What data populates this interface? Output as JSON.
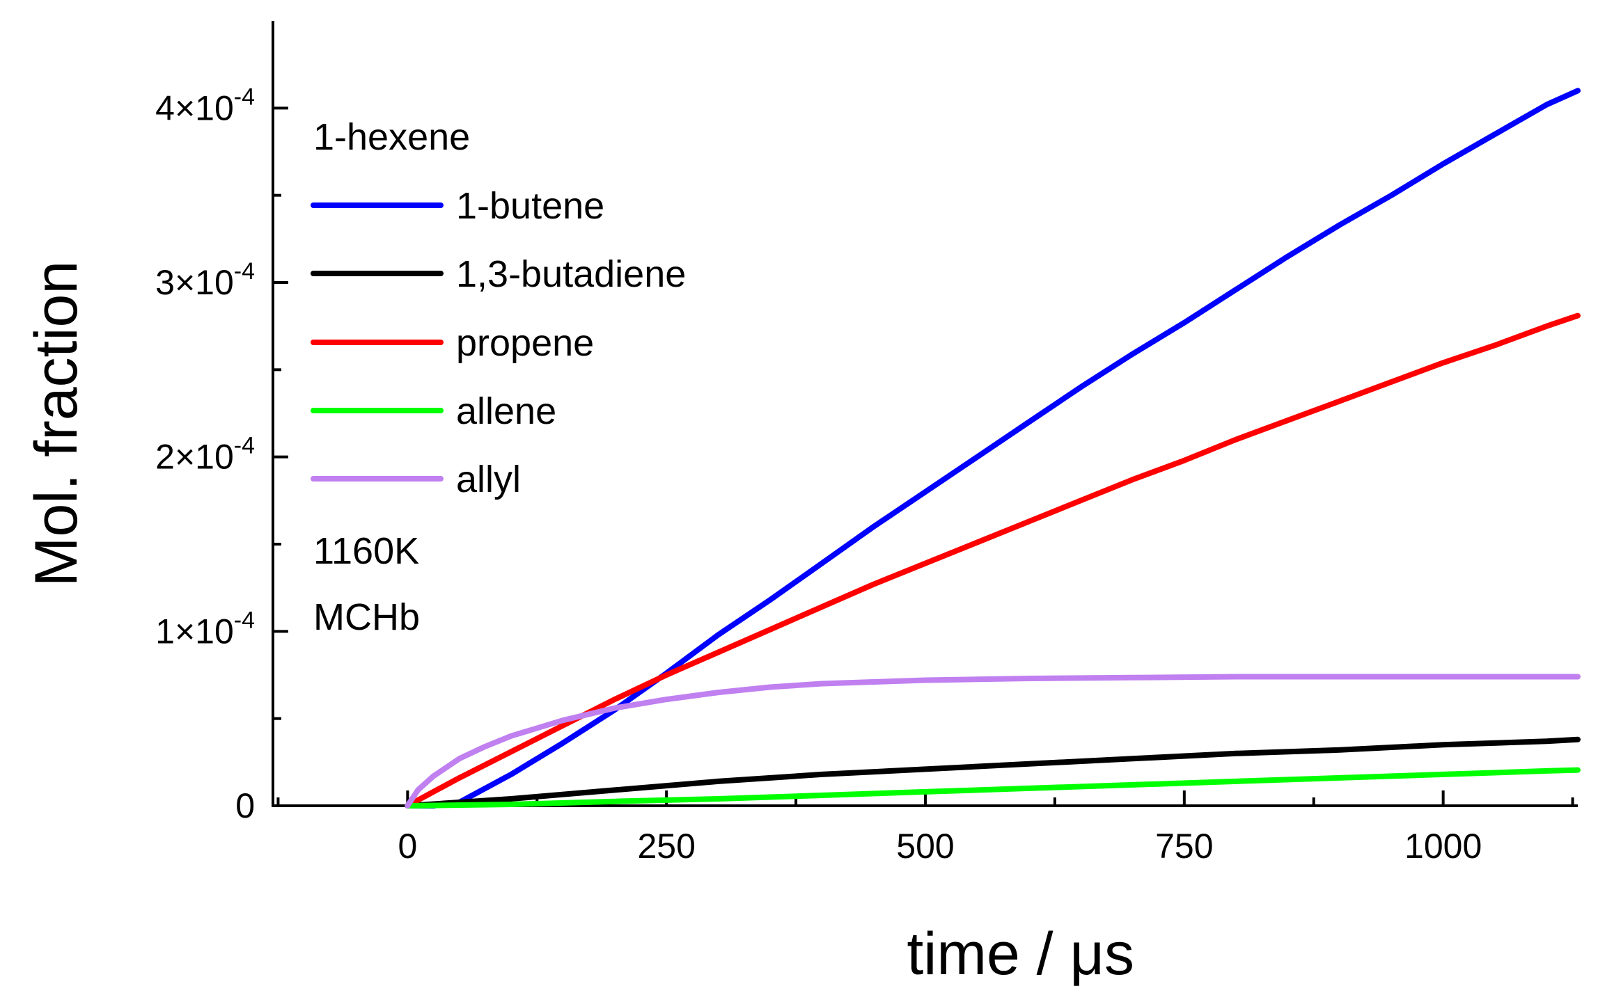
{
  "chart_data": {
    "type": "line",
    "title": "",
    "xlabel": "time / μs",
    "ylabel": "Mol. fraction",
    "xlim": [
      -130,
      1130
    ],
    "ylim": [
      0,
      0.00045
    ],
    "x_ticks": [
      0,
      250,
      500,
      750,
      1000
    ],
    "x_tick_labels": [
      "0",
      "250",
      "500",
      "750",
      "1000"
    ],
    "y_ticks": [
      0,
      0.0001,
      0.0002,
      0.0003,
      0.0004
    ],
    "y_tick_labels": [
      {
        "base": "0",
        "exp": ""
      },
      {
        "base": "1×10",
        "exp": "-4"
      },
      {
        "base": "2×10",
        "exp": "-4"
      },
      {
        "base": "3×10",
        "exp": "-4"
      },
      {
        "base": "4×10",
        "exp": "-4"
      }
    ],
    "grid": false,
    "legend_position": "top-left",
    "legend_header": "1-hexene",
    "annotations": [
      "1160K",
      "MCHb"
    ],
    "series": [
      {
        "name": "1-butene",
        "color": "#0000ff",
        "x": [
          0,
          25,
          50,
          100,
          150,
          200,
          250,
          300,
          350,
          400,
          450,
          500,
          550,
          600,
          650,
          700,
          750,
          800,
          850,
          900,
          950,
          1000,
          1050,
          1100,
          1130
        ],
        "y": [
          0,
          0,
          2e-06,
          1.8e-05,
          3.6e-05,
          5.5e-05,
          7.6e-05,
          9.8e-05,
          0.000118,
          0.000139,
          0.00016,
          0.00018,
          0.0002,
          0.00022,
          0.00024,
          0.000259,
          0.000277,
          0.000296,
          0.000315,
          0.000333,
          0.00035,
          0.000368,
          0.000385,
          0.000402,
          0.00041
        ]
      },
      {
        "name": "1,3-butadiene",
        "color": "#000000",
        "x": [
          0,
          50,
          100,
          200,
          300,
          400,
          500,
          600,
          700,
          800,
          900,
          1000,
          1100,
          1130
        ],
        "y": [
          0,
          2e-06,
          4e-06,
          9e-06,
          1.4e-05,
          1.8e-05,
          2.1e-05,
          2.4e-05,
          2.7e-05,
          3e-05,
          3.2e-05,
          3.5e-05,
          3.7e-05,
          3.8e-05
        ]
      },
      {
        "name": "propene",
        "color": "#ff0000",
        "x": [
          0,
          25,
          50,
          100,
          150,
          200,
          250,
          300,
          350,
          400,
          450,
          500,
          550,
          600,
          650,
          700,
          750,
          800,
          850,
          900,
          950,
          1000,
          1050,
          1100,
          1130
        ],
        "y": [
          0,
          8e-06,
          1.6e-05,
          3.1e-05,
          4.6e-05,
          6.1e-05,
          7.5e-05,
          8.8e-05,
          0.000101,
          0.000114,
          0.000127,
          0.000139,
          0.000151,
          0.000163,
          0.000175,
          0.000187,
          0.000198,
          0.00021,
          0.000221,
          0.000232,
          0.000243,
          0.000254,
          0.000264,
          0.000275,
          0.000281
        ]
      },
      {
        "name": "allene",
        "color": "#00ff00",
        "x": [
          0,
          100,
          200,
          300,
          400,
          500,
          600,
          700,
          800,
          900,
          1000,
          1100,
          1130
        ],
        "y": [
          0,
          8e-07,
          2.5e-06,
          4e-06,
          6e-06,
          8e-06,
          1e-05,
          1.2e-05,
          1.4e-05,
          1.6e-05,
          1.8e-05,
          2e-05,
          2.05e-05
        ]
      },
      {
        "name": "allyl",
        "color": "#c080f0",
        "x": [
          0,
          10,
          25,
          50,
          75,
          100,
          150,
          200,
          250,
          300,
          350,
          400,
          450,
          500,
          600,
          700,
          800,
          900,
          1000,
          1100,
          1130
        ],
        "y": [
          0,
          9e-06,
          1.7e-05,
          2.7e-05,
          3.4e-05,
          4e-05,
          4.9e-05,
          5.6e-05,
          6.1e-05,
          6.5e-05,
          6.8e-05,
          7e-05,
          7.1e-05,
          7.2e-05,
          7.3e-05,
          7.35e-05,
          7.4e-05,
          7.4e-05,
          7.4e-05,
          7.4e-05,
          7.4e-05
        ]
      }
    ]
  }
}
